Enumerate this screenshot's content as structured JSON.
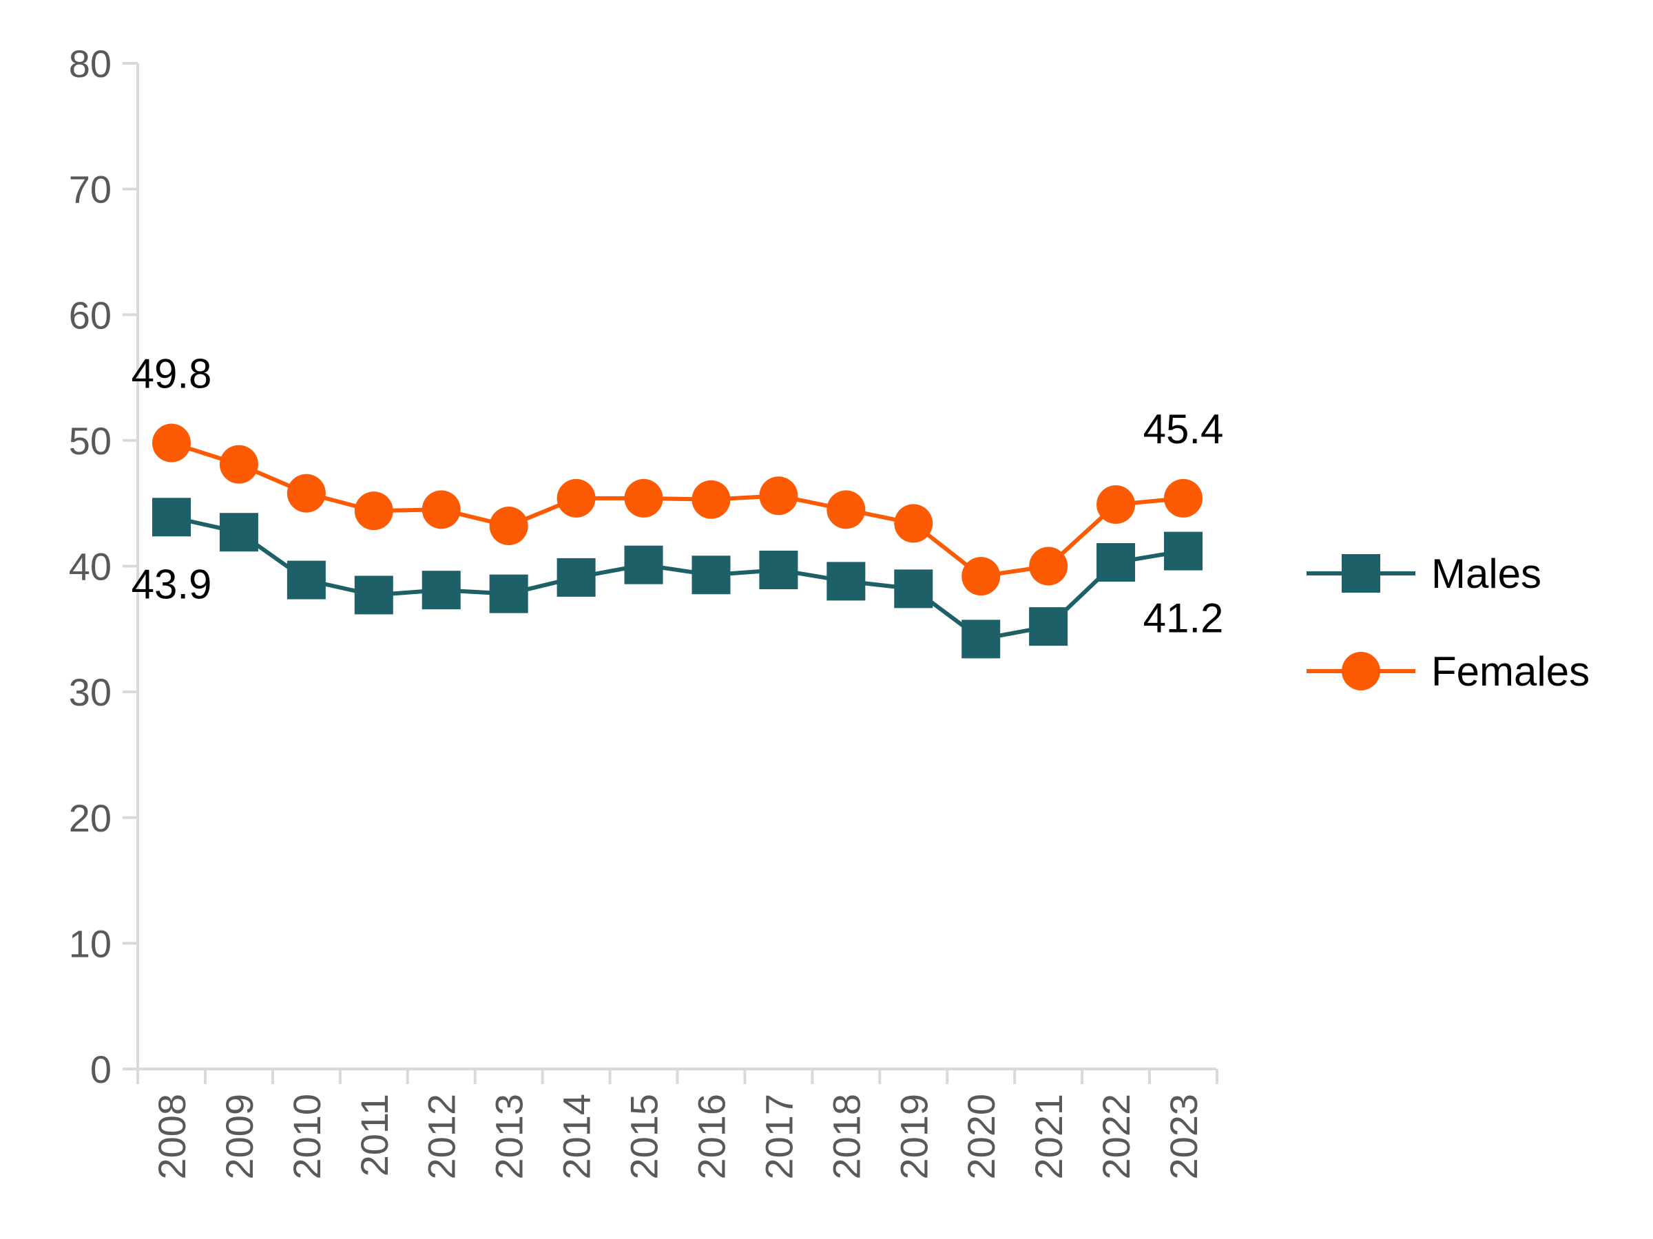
{
  "chart_data": {
    "type": "line",
    "title": "",
    "xlabel": "",
    "ylabel": "",
    "ylim": [
      0,
      80
    ],
    "yticks": [
      0,
      10,
      20,
      30,
      40,
      50,
      60,
      70,
      80
    ],
    "grid": false,
    "legend_position": "right",
    "x": [
      "2008",
      "2009",
      "2010",
      "2011",
      "2012",
      "2013",
      "2014",
      "2015",
      "2016",
      "2017",
      "2018",
      "2019",
      "2020",
      "2021",
      "2022",
      "2023"
    ],
    "series": [
      {
        "name": "Males",
        "color": "#1d6068",
        "marker": "square",
        "values": [
          43.9,
          42.7,
          38.9,
          37.7,
          38.1,
          37.8,
          39.1,
          40.1,
          39.3,
          39.7,
          38.8,
          38.2,
          34.2,
          35.2,
          40.3,
          41.2
        ]
      },
      {
        "name": "Females",
        "color": "#fc5a03",
        "marker": "circle",
        "values": [
          49.8,
          48.1,
          45.8,
          44.4,
          44.5,
          43.2,
          45.4,
          45.4,
          45.3,
          45.6,
          44.5,
          43.4,
          39.2,
          40.0,
          44.9,
          45.4
        ]
      }
    ],
    "data_labels": [
      {
        "series": "Females",
        "x": "2008",
        "text": "49.8",
        "position": "above"
      },
      {
        "series": "Males",
        "x": "2008",
        "text": "43.9",
        "position": "below"
      },
      {
        "series": "Females",
        "x": "2023",
        "text": "45.4",
        "position": "above"
      },
      {
        "series": "Males",
        "x": "2023",
        "text": "41.2",
        "position": "below"
      }
    ]
  }
}
